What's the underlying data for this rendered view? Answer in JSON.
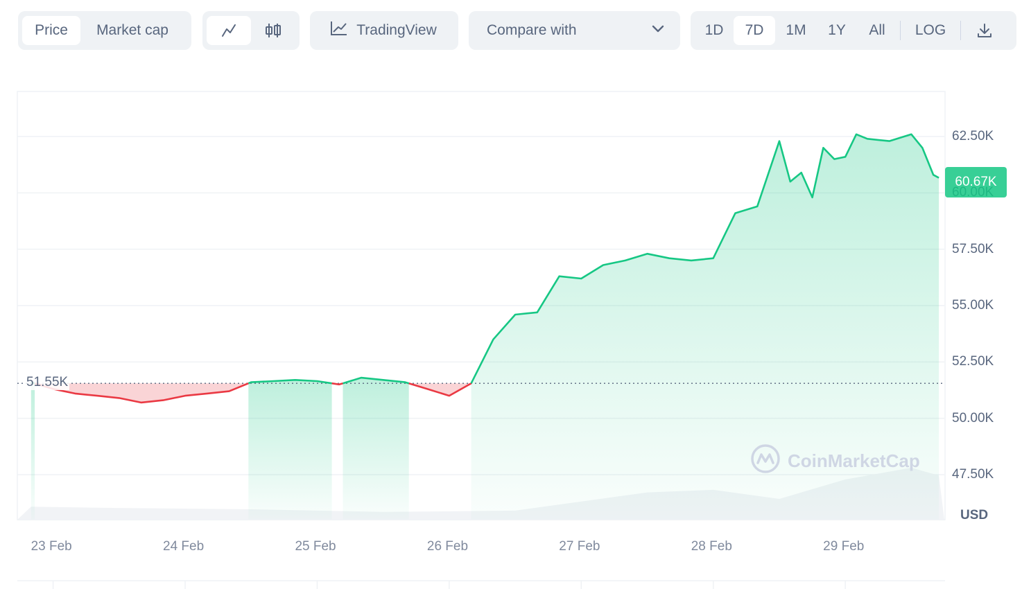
{
  "toolbar": {
    "view_tabs": [
      "Price",
      "Market cap"
    ],
    "active_view": "Price",
    "chart_type_icons": [
      "line-chart-icon",
      "candlestick-icon"
    ],
    "active_chart_type": "line-chart-icon",
    "tradingview_label": "TradingView",
    "compare_label": "Compare with",
    "ranges": [
      "1D",
      "7D",
      "1M",
      "1Y",
      "All"
    ],
    "active_range": "7D",
    "log_label": "LOG",
    "download_icon": "download-icon"
  },
  "chart_data": {
    "type": "area",
    "x_ticks": [
      "23 Feb",
      "24 Feb",
      "25 Feb",
      "26 Feb",
      "27 Feb",
      "28 Feb",
      "29 Feb"
    ],
    "y_ticks": [
      "62.50K",
      "60.00K",
      "57.50K",
      "55.00K",
      "52.50K",
      "50.00K",
      "47.50K"
    ],
    "ylim": [
      45500,
      64500
    ],
    "unit": "USD",
    "open_price_label": "51.55K",
    "open_price": 51550,
    "current_price_label": "60.67K",
    "current_price": 60670,
    "colors": {
      "up": "#16c784",
      "down": "#ea3943"
    },
    "series": [
      {
        "x": [
          "2024-02-22T20:00",
          "2024-02-23T00:00",
          "2024-02-23T04:00",
          "2024-02-23T08:00",
          "2024-02-23T12:00",
          "2024-02-23T16:00",
          "2024-02-23T20:00",
          "2024-02-24T00:00",
          "2024-02-24T04:00",
          "2024-02-24T08:00",
          "2024-02-24T12:00",
          "2024-02-24T16:00",
          "2024-02-24T20:00",
          "2024-02-25T00:00",
          "2024-02-25T04:00",
          "2024-02-25T08:00",
          "2024-02-25T12:00",
          "2024-02-25T16:00",
          "2024-02-25T20:00",
          "2024-02-26T00:00",
          "2024-02-26T04:00",
          "2024-02-26T08:00",
          "2024-02-26T12:00",
          "2024-02-26T16:00",
          "2024-02-26T20:00",
          "2024-02-27T00:00",
          "2024-02-27T04:00",
          "2024-02-27T08:00",
          "2024-02-27T12:00",
          "2024-02-27T16:00",
          "2024-02-27T20:00",
          "2024-02-28T00:00",
          "2024-02-28T04:00",
          "2024-02-28T08:00",
          "2024-02-28T12:00",
          "2024-02-28T14:00",
          "2024-02-28T16:00",
          "2024-02-28T18:00",
          "2024-02-28T20:00",
          "2024-02-28T22:00",
          "2024-02-29T00:00",
          "2024-02-29T02:00",
          "2024-02-29T04:00",
          "2024-02-29T08:00",
          "2024-02-29T12:00",
          "2024-02-29T14:00",
          "2024-02-29T16:00",
          "2024-02-29T17:00"
        ],
        "values": [
          51600,
          51300,
          51100,
          51000,
          50900,
          50700,
          50800,
          51000,
          51100,
          51200,
          51600,
          51650,
          51700,
          51650,
          51500,
          51800,
          51700,
          51600,
          51300,
          51000,
          51550,
          53500,
          54600,
          54700,
          56300,
          56200,
          56800,
          57000,
          57300,
          57100,
          57000,
          57100,
          59100,
          59400,
          62300,
          60500,
          60900,
          59800,
          62000,
          61500,
          61600,
          62600,
          62400,
          62300,
          62600,
          62000,
          60800,
          60670
        ]
      }
    ],
    "volume": {
      "x": [
        "2024-02-22T20:00",
        "2024-02-23T12:00",
        "2024-02-24T12:00",
        "2024-02-25T12:00",
        "2024-02-26T12:00",
        "2024-02-27T00:00",
        "2024-02-27T12:00",
        "2024-02-28T00:00",
        "2024-02-28T12:00",
        "2024-02-29T00:00",
        "2024-02-29T12:00",
        "2024-02-29T17:00"
      ],
      "values": [
        1.0,
        0.9,
        0.8,
        0.6,
        0.7,
        1.4,
        2.1,
        2.3,
        1.6,
        3.1,
        4.0,
        3.4
      ]
    }
  },
  "watermark_text": "CoinMarketCap"
}
